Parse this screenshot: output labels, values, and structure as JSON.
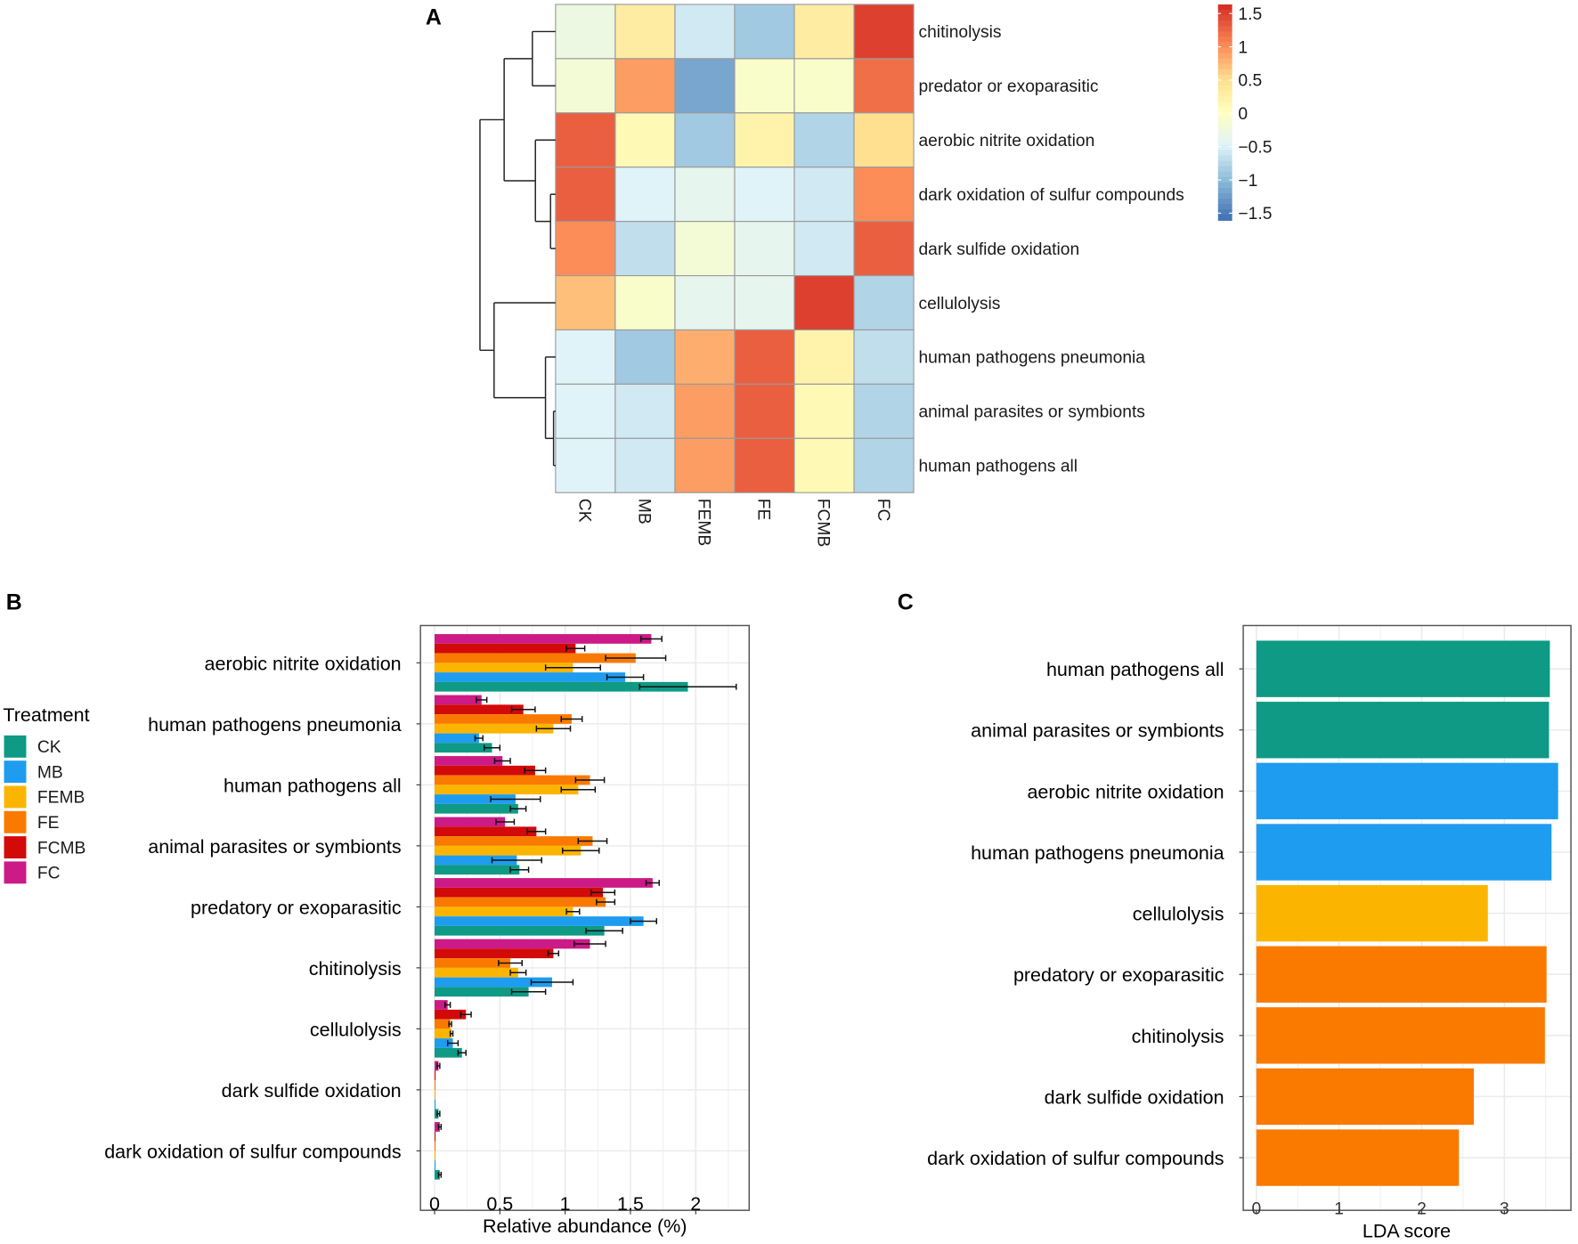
{
  "colors": {
    "CK": "#0e9a85",
    "MB": "#1e9cf0",
    "FEMB": "#fbb500",
    "FE": "#fa7a00",
    "FCMB": "#d20a0a",
    "FC": "#cc1a86"
  },
  "chart_data": [
    {
      "panel": "A",
      "type": "heatmap",
      "columns": [
        "CK",
        "MB",
        "FEMB",
        "FE",
        "FCMB",
        "FC"
      ],
      "rows": [
        "chitinolysis",
        "predator or exoparasitic",
        "aerobic nitrite oxidation",
        "dark oxidation of sulfur compounds",
        "dark sulfide oxidation",
        "cellulolysis",
        "human pathogens pneumonia",
        "animal parasites or symbionts",
        "human pathogens all"
      ],
      "values": [
        [
          -0.3,
          0.3,
          -0.6,
          -0.9,
          0.3,
          1.5
        ],
        [
          -0.2,
          0.9,
          -1.2,
          -0.1,
          -0.1,
          1.2
        ],
        [
          1.3,
          0.1,
          -0.9,
          0.2,
          -0.8,
          0.5
        ],
        [
          1.3,
          -0.5,
          -0.4,
          -0.5,
          -0.6,
          1.0
        ],
        [
          1.0,
          -0.7,
          -0.2,
          -0.4,
          -0.6,
          1.3
        ],
        [
          0.7,
          -0.1,
          -0.4,
          -0.4,
          1.5,
          -0.8
        ],
        [
          -0.5,
          -0.9,
          0.8,
          1.3,
          0.2,
          -0.7
        ],
        [
          -0.5,
          -0.6,
          0.9,
          1.3,
          0.1,
          -0.8
        ],
        [
          -0.5,
          -0.6,
          0.9,
          1.3,
          0.1,
          -0.8
        ]
      ],
      "colorbar": {
        "ticks": [
          "1.5",
          "1",
          "0.5",
          "0",
          "−0.5",
          "−1",
          "−1.5"
        ],
        "tick_values": [
          1.5,
          1,
          0.5,
          0,
          -0.5,
          -1,
          -1.5
        ],
        "range": [
          -1.6,
          1.6
        ]
      },
      "row_dendrogram": true
    },
    {
      "panel": "B",
      "type": "bar",
      "orientation": "horizontal",
      "categories": [
        "aerobic nitrite oxidation",
        "human pathogens pneumonia",
        "human pathogens all",
        "animal parasites or symbionts",
        "predatory or exoparasitic",
        "chitinolysis",
        "cellulolysis",
        "dark sulfide oxidation",
        "dark oxidation of sulfur compounds"
      ],
      "series": [
        {
          "name": "FC",
          "values": [
            1.66,
            0.36,
            0.52,
            0.54,
            1.67,
            1.19,
            0.1,
            0.03,
            0.04
          ],
          "errors": [
            0.08,
            0.04,
            0.06,
            0.07,
            0.05,
            0.12,
            0.02,
            0.01,
            0.01
          ]
        },
        {
          "name": "FCMB",
          "values": [
            1.08,
            0.68,
            0.77,
            0.78,
            1.29,
            0.91,
            0.24,
            0.005,
            0.005
          ],
          "errors": [
            0.07,
            0.09,
            0.08,
            0.07,
            0.09,
            0.04,
            0.04,
            0,
            0
          ]
        },
        {
          "name": "FE",
          "values": [
            1.54,
            1.05,
            1.19,
            1.21,
            1.31,
            0.58,
            0.12,
            0.005,
            0.005
          ],
          "errors": [
            0.23,
            0.08,
            0.11,
            0.11,
            0.07,
            0.09,
            0.01,
            0,
            0
          ]
        },
        {
          "name": "FEMB",
          "values": [
            1.06,
            0.91,
            1.1,
            1.12,
            1.06,
            0.64,
            0.13,
            0.005,
            0.005
          ],
          "errors": [
            0.21,
            0.13,
            0.13,
            0.14,
            0.05,
            0.06,
            0.01,
            0,
            0
          ]
        },
        {
          "name": "MB",
          "values": [
            1.46,
            0.34,
            0.62,
            0.63,
            1.6,
            0.9,
            0.14,
            0.005,
            0.005
          ],
          "errors": [
            0.14,
            0.03,
            0.19,
            0.19,
            0.1,
            0.16,
            0.04,
            0,
            0
          ]
        },
        {
          "name": "CK",
          "values": [
            1.94,
            0.44,
            0.64,
            0.65,
            1.3,
            0.72,
            0.21,
            0.03,
            0.04
          ],
          "errors": [
            0.37,
            0.06,
            0.06,
            0.07,
            0.14,
            0.13,
            0.03,
            0.01,
            0.01
          ]
        }
      ],
      "xlabel": "Relative abundance (%)",
      "xticks": [
        "0",
        "0.5",
        "1",
        "1.5",
        "2"
      ],
      "xlim": [
        -0.1,
        2.4
      ],
      "legend": {
        "title": "Treatment",
        "entries": [
          "CK",
          "MB",
          "FEMB",
          "FE",
          "FCMB",
          "FC"
        ],
        "placement": "left"
      },
      "grid": true
    },
    {
      "panel": "C",
      "type": "bar",
      "orientation": "horizontal",
      "categories": [
        "human pathogens all",
        "animal parasites or symbionts",
        "aerobic nitrite oxidation",
        "human pathogens pneumonia",
        "cellulolysis",
        "predatory or exoparasitic",
        "chitinolysis",
        "dark sulfide oxidation",
        "dark oxidation of sulfur compounds"
      ],
      "values": [
        3.55,
        3.54,
        3.65,
        3.57,
        2.8,
        3.51,
        3.49,
        2.63,
        2.45
      ],
      "groups": [
        "CK",
        "CK",
        "MB",
        "MB",
        "FEMB",
        "FE",
        "FE",
        "FE",
        "FE"
      ],
      "xlabel": "LDA score",
      "xticks": [
        "0",
        "1",
        "2",
        "3"
      ],
      "xlim": [
        -0.15,
        3.8
      ],
      "grid": true
    }
  ],
  "panels": {
    "a": "A",
    "b": "B",
    "c": "C"
  }
}
